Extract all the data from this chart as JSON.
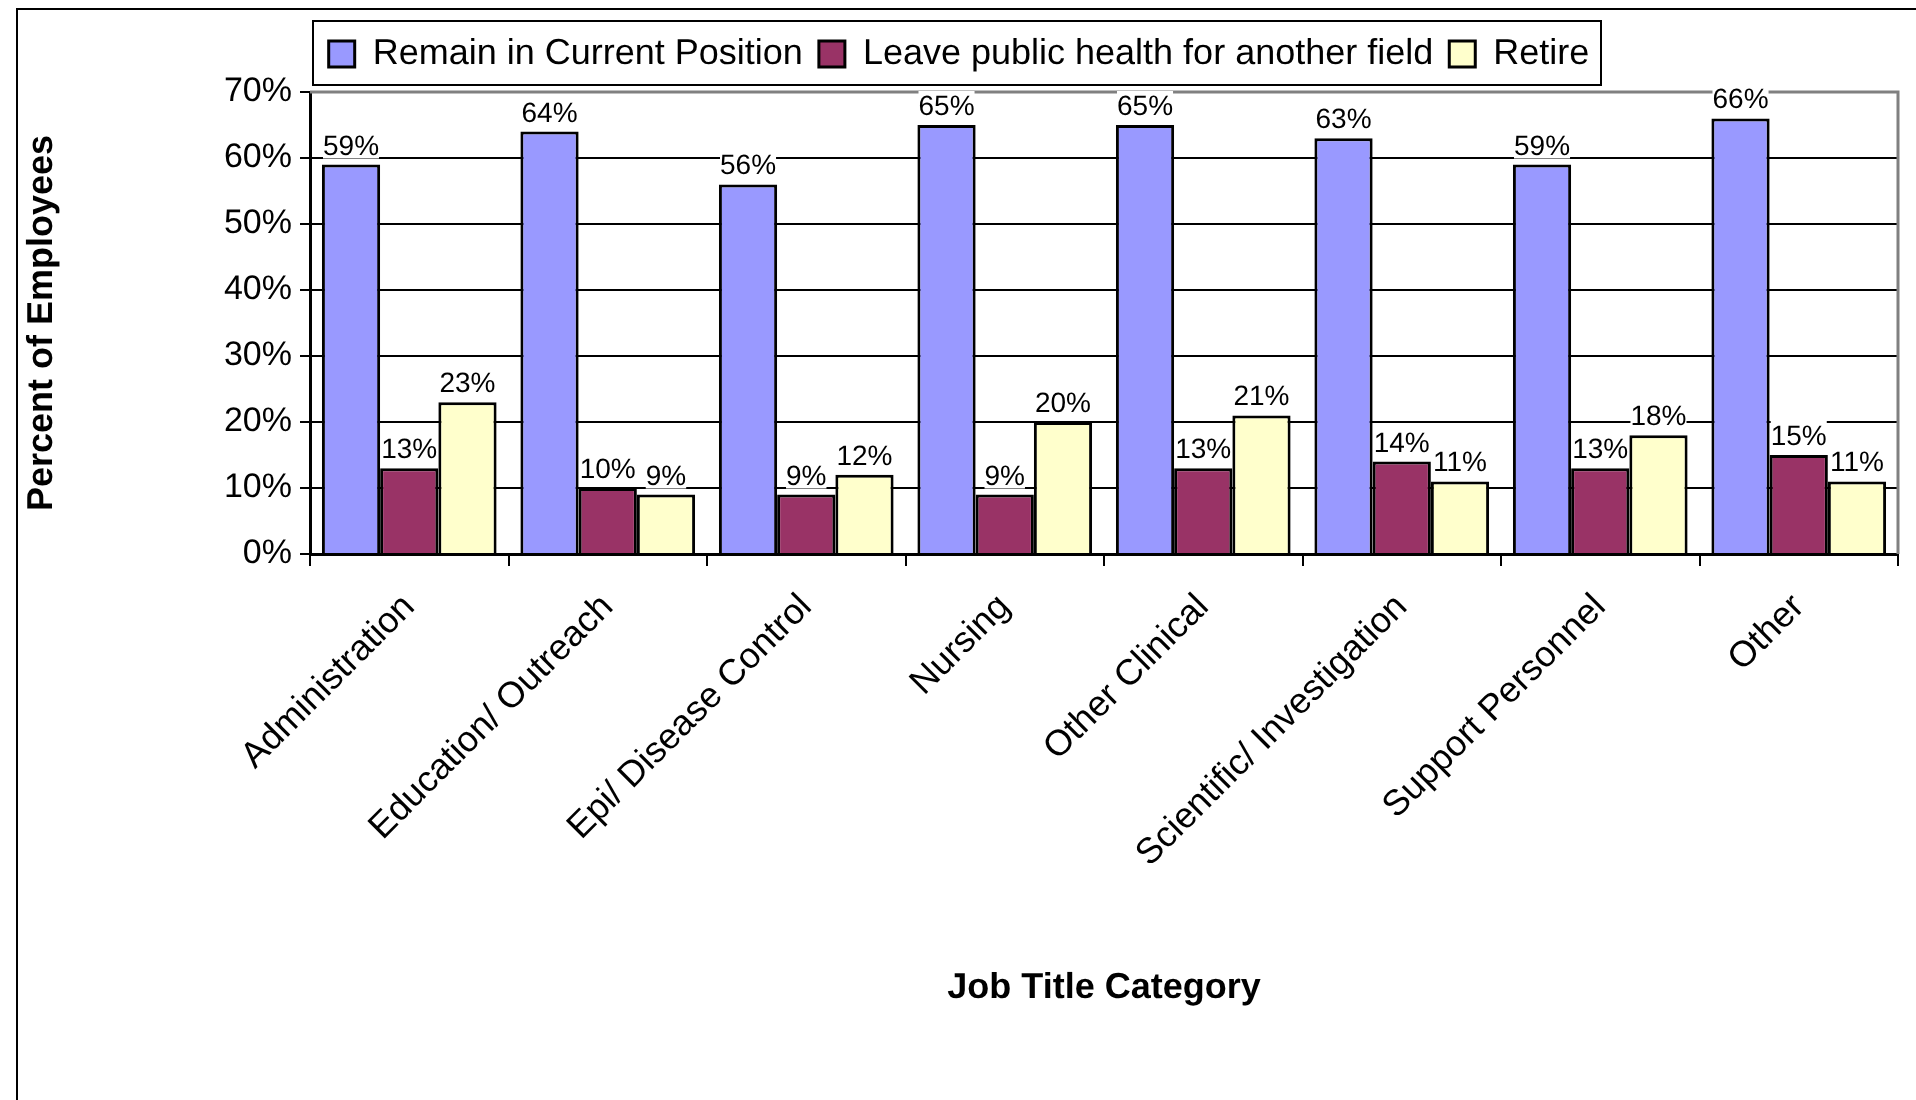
{
  "chart_data": {
    "type": "bar",
    "categories": [
      "Administration",
      "Education/ Outreach",
      "Epi/ Disease Control",
      "Nursing",
      "Other Clinical",
      "Scientific/ Investigation",
      "Support Personnel",
      "Other"
    ],
    "series": [
      {
        "name": "Remain in Current Position",
        "color": "#9999ff",
        "values": [
          59,
          64,
          56,
          65,
          65,
          63,
          59,
          66
        ],
        "value_labels": [
          "59%",
          "64%",
          "56%",
          "65%",
          "65%",
          "63%",
          "59%",
          "66%"
        ]
      },
      {
        "name": "Leave public health for another field",
        "color": "#993366",
        "values": [
          13,
          10,
          9,
          9,
          13,
          14,
          13,
          15
        ],
        "value_labels": [
          "13%",
          "10%",
          "9%",
          "9%",
          "13%",
          "14%",
          "13%",
          "15%"
        ]
      },
      {
        "name": "Retire",
        "color": "#ffffcc",
        "values": [
          23,
          9,
          12,
          20,
          21,
          11,
          18,
          11
        ],
        "value_labels": [
          "23%",
          "9%",
          "12%",
          "20%",
          "21%",
          "11%",
          "18%",
          "11%"
        ]
      }
    ],
    "xlabel": "Job Title Category",
    "ylabel": "Percent of Employees",
    "ylim": [
      0,
      70
    ],
    "yticks": [
      {
        "value": 0,
        "label": "0%"
      },
      {
        "value": 10,
        "label": "10%"
      },
      {
        "value": 20,
        "label": "20%"
      },
      {
        "value": 30,
        "label": "30%"
      },
      {
        "value": 40,
        "label": "40%"
      },
      {
        "value": 50,
        "label": "50%"
      },
      {
        "value": 60,
        "label": "60%"
      },
      {
        "value": 70,
        "label": "70%"
      }
    ],
    "grid": "y",
    "legend": "top"
  }
}
